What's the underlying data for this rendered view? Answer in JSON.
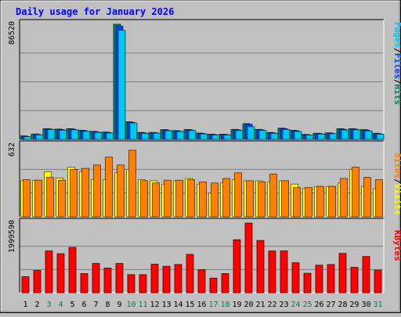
{
  "title": "Daily usage for January 2026",
  "colors": {
    "background": "#c0c0c0",
    "plot_bg": "#c0c0c0",
    "title": "#0000ff",
    "hits": "#00805c",
    "files": "#0040ff",
    "pages": "#00c8f0",
    "visits": "#ffff00",
    "sites": "#ff8000",
    "kbytes": "#ff0000",
    "weekend_label": "#00805c",
    "weekday_label": "#000000"
  },
  "days": [
    "1",
    "2",
    "3",
    "4",
    "5",
    "6",
    "7",
    "8",
    "9",
    "10",
    "11",
    "12",
    "13",
    "14",
    "15",
    "16",
    "17",
    "18",
    "19",
    "20",
    "21",
    "22",
    "23",
    "24",
    "25",
    "26",
    "27",
    "28",
    "29",
    "30",
    "31"
  ],
  "weekend_days": [
    3,
    4,
    10,
    11,
    17,
    18,
    24,
    25,
    31
  ],
  "chart_data": [
    {
      "type": "bar",
      "name": "hits-files-pages",
      "y_max_label": "86520",
      "ylim": [
        0,
        86520
      ],
      "legend": [
        {
          "label": "Pages",
          "color_key": "pages"
        },
        {
          "label": "Files",
          "color_key": "files"
        },
        {
          "label": "Hits",
          "color_key": "hits"
        }
      ],
      "series": [
        {
          "name": "Hits",
          "values": [
            2600,
            4000,
            8000,
            7700,
            8000,
            6800,
            6000,
            5500,
            86520,
            13200,
            5200,
            5200,
            7300,
            6600,
            7400,
            4700,
            3900,
            3900,
            7500,
            11800,
            7500,
            5200,
            8400,
            6800,
            3700,
            4600,
            4900,
            8000,
            8000,
            7300,
            4600
          ]
        },
        {
          "name": "Files",
          "values": [
            2300,
            3700,
            7700,
            7300,
            7600,
            6400,
            5600,
            5100,
            85000,
            12800,
            4900,
            4900,
            6900,
            6200,
            7000,
            4400,
            3600,
            3600,
            7100,
            11300,
            7200,
            4900,
            8000,
            6400,
            3400,
            4300,
            4600,
            7600,
            7600,
            6900,
            4300
          ]
        },
        {
          "name": "Pages",
          "values": [
            2000,
            3300,
            7300,
            6800,
            7100,
            6000,
            5200,
            4700,
            82000,
            12300,
            4500,
            4600,
            6500,
            5800,
            6600,
            4000,
            3200,
            3200,
            6600,
            9500,
            6700,
            4500,
            7400,
            5900,
            3100,
            3900,
            4200,
            7000,
            7100,
            6300,
            3900
          ]
        }
      ]
    },
    {
      "type": "bar",
      "name": "visits-sites",
      "y_max_label": "632",
      "ylim": [
        0,
        632
      ],
      "legend": [
        {
          "label": "Sites",
          "color_key": "sites"
        },
        {
          "label": "Visits",
          "color_key": "visits"
        }
      ],
      "series": [
        {
          "name": "Visits",
          "values": [
            320,
            325,
            400,
            345,
            440,
            400,
            330,
            330,
            390,
            420,
            330,
            320,
            290,
            320,
            340,
            290,
            210,
            300,
            330,
            320,
            320,
            310,
            320,
            290,
            250,
            270,
            270,
            300,
            420,
            270,
            250
          ]
        },
        {
          "name": "Sites",
          "values": [
            330,
            325,
            350,
            325,
            420,
            430,
            460,
            530,
            460,
            590,
            320,
            300,
            325,
            325,
            330,
            310,
            300,
            340,
            390,
            320,
            310,
            380,
            320,
            260,
            260,
            270,
            270,
            340,
            440,
            350,
            330
          ]
        }
      ]
    },
    {
      "type": "bar",
      "name": "kbytes",
      "y_max_label": "1999590",
      "ylim": [
        0,
        1999590
      ],
      "legend": [
        {
          "label": "KBytes",
          "color_key": "kbytes"
        }
      ],
      "series": [
        {
          "name": "KBytes",
          "values": [
            460000,
            640000,
            1200000,
            1120000,
            1300000,
            550000,
            840000,
            710000,
            840000,
            520000,
            520000,
            820000,
            760000,
            810000,
            1100000,
            660000,
            420000,
            550000,
            1520000,
            2000000,
            1500000,
            1200000,
            1200000,
            860000,
            560000,
            790000,
            810000,
            1130000,
            730000,
            1040000,
            650000
          ]
        }
      ]
    }
  ]
}
